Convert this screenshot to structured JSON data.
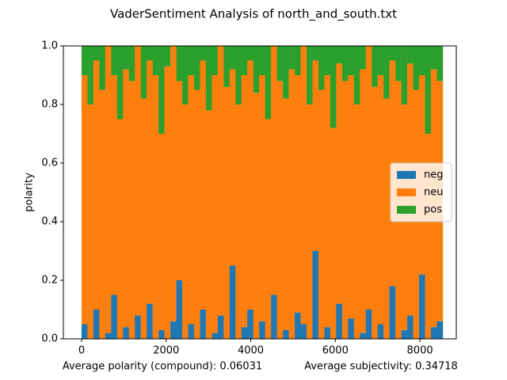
{
  "chart_data": {
    "type": "stacked_bar",
    "title": "VaderSentiment Analysis of north_and_south.txt",
    "ylabel": "polarity",
    "annotations": [
      "Average polarity (compound): 0.06031",
      "Average subjectivity: 0.34718"
    ],
    "x": [
      0,
      140,
      280,
      420,
      560,
      700,
      840,
      980,
      1120,
      1260,
      1400,
      1540,
      1680,
      1820,
      1960,
      2100,
      2240,
      2380,
      2520,
      2660,
      2800,
      2940,
      3080,
      3220,
      3360,
      3500,
      3640,
      3780,
      3920,
      4060,
      4200,
      4340,
      4480,
      4620,
      4760,
      4900,
      5040,
      5180,
      5320,
      5460,
      5600,
      5740,
      5880,
      6020,
      6160,
      6300,
      6440,
      6580,
      6720,
      6860,
      7000,
      7140,
      7280,
      7420,
      7560,
      7700,
      7840,
      7980,
      8120,
      8260,
      8400
    ],
    "series": [
      {
        "name": "neg",
        "color": "#1f77b4",
        "values": [
          0.05,
          0,
          0.1,
          0,
          0.02,
          0.15,
          0,
          0.04,
          0,
          0.08,
          0,
          0.12,
          0,
          0.03,
          0,
          0.06,
          0.2,
          0,
          0.05,
          0,
          0.1,
          0,
          0.02,
          0.08,
          0,
          0.25,
          0,
          0.04,
          0.1,
          0,
          0.06,
          0,
          0.15,
          0,
          0.03,
          0,
          0.09,
          0.05,
          0,
          0.3,
          0,
          0.04,
          0,
          0.12,
          0,
          0.07,
          0,
          0.02,
          0.1,
          0,
          0.05,
          0,
          0.18,
          0,
          0.03,
          0.08,
          0,
          0.22,
          0,
          0.04,
          0.06
        ]
      },
      {
        "name": "neu",
        "color": "#ff7f0e",
        "values": [
          0.85,
          0.8,
          0.85,
          0.85,
          0.98,
          0.75,
          0.75,
          0.88,
          0.88,
          0.92,
          0.82,
          0.83,
          0.9,
          0.67,
          0.93,
          0.94,
          0.68,
          0.8,
          0.85,
          0.85,
          0.85,
          0.78,
          0.88,
          0.92,
          0.86,
          0.67,
          0.8,
          0.86,
          0.85,
          0.84,
          0.84,
          0.75,
          0.85,
          0.88,
          0.79,
          0.92,
          0.81,
          0.95,
          0.8,
          0.65,
          0.85,
          0.86,
          0.72,
          0.82,
          0.88,
          0.83,
          0.8,
          0.9,
          0.9,
          0.86,
          0.85,
          0.82,
          0.77,
          0.88,
          0.77,
          0.86,
          0.85,
          0.68,
          0.7,
          0.88,
          0.82
        ]
      },
      {
        "name": "pos",
        "color": "#2ca02c",
        "values": [
          0.1,
          0.2,
          0.05,
          0.15,
          0,
          0.1,
          0.25,
          0.08,
          0.12,
          0,
          0.18,
          0.05,
          0.1,
          0.3,
          0.07,
          0,
          0.12,
          0.2,
          0.1,
          0.15,
          0.05,
          0.22,
          0.1,
          0,
          0.14,
          0.08,
          0.2,
          0.1,
          0.05,
          0.16,
          0.1,
          0.25,
          0,
          0.12,
          0.18,
          0.08,
          0.1,
          0,
          0.2,
          0.05,
          0.15,
          0.1,
          0.28,
          0.06,
          0.12,
          0.1,
          0.2,
          0.08,
          0,
          0.14,
          0.1,
          0.18,
          0.05,
          0.12,
          0.2,
          0.06,
          0.15,
          0.1,
          0.3,
          0.08,
          0.12
        ]
      }
    ],
    "xlim": [
      -430,
      8860
    ],
    "xticks": [
      0,
      2000,
      4000,
      6000,
      8000
    ],
    "ylim": [
      0,
      1
    ],
    "yticks": [
      {
        "value": 0,
        "label": "0.0"
      },
      {
        "value": 0.2,
        "label": "0.2"
      },
      {
        "value": 0.4,
        "label": "0.4"
      },
      {
        "value": 0.6,
        "label": "0.6"
      },
      {
        "value": 0.8,
        "label": "0.8"
      },
      {
        "value": 1,
        "label": "1.0"
      }
    ],
    "legend": "center right"
  }
}
